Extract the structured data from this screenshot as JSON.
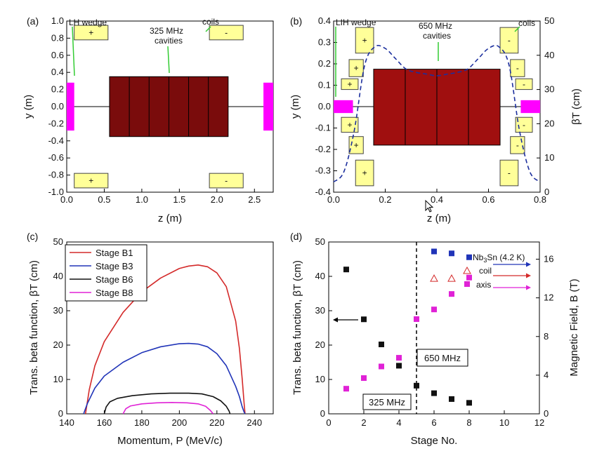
{
  "chart_data": [
    {
      "panel": "(a)",
      "type": "diagram",
      "xlabel": "z (m)",
      "ylabel": "y (m)",
      "xlim": [
        0,
        2.75
      ],
      "ylim": [
        -1.0,
        1.0
      ],
      "xticks": [
        "0.0",
        "0.5",
        "1.0",
        "1.5",
        "2.0",
        "2.5"
      ],
      "yticks": [
        "-1.0",
        "-0.8",
        "-0.6",
        "-0.4",
        "-0.2",
        "0.0",
        "0.2",
        "0.4",
        "0.6",
        "0.8",
        "1.0"
      ],
      "labels": {
        "wedge": "LH wedge",
        "cavities_line1": "325 MHz",
        "cavities_line2": "cavities",
        "coils": "coils"
      },
      "coils": [
        {
          "z": [
            0.1,
            0.55
          ],
          "y": [
            0.78,
            0.95
          ],
          "sign": "+"
        },
        {
          "z": [
            1.9,
            2.35
          ],
          "y": [
            0.78,
            0.95
          ],
          "sign": "-"
        },
        {
          "z": [
            0.1,
            0.55
          ],
          "y": [
            -0.95,
            -0.78
          ],
          "sign": "+"
        },
        {
          "z": [
            1.9,
            2.35
          ],
          "y": [
            -0.95,
            -0.78
          ],
          "sign": "-"
        }
      ],
      "cavity_block": {
        "z": [
          0.57,
          2.15
        ],
        "y": [
          -0.35,
          0.35
        ],
        "cells": 6
      },
      "wedges": [
        {
          "z": [
            0.0,
            0.1
          ],
          "y": [
            -0.28,
            0.28
          ]
        },
        {
          "z": [
            2.62,
            2.75
          ],
          "y": [
            -0.28,
            0.28
          ]
        }
      ],
      "colors": {
        "coil": "#ffff99",
        "cavity": "#7a0c0c",
        "wedge": "#ff00ff",
        "leader": "#33cc33"
      }
    },
    {
      "panel": "(b)",
      "type": "line",
      "xlabel": "z (m)",
      "ylabel": "y (m)",
      "y2label": "βT (cm)",
      "xlim": [
        0,
        0.8
      ],
      "ylim": [
        -0.4,
        0.4
      ],
      "y2lim": [
        0,
        50
      ],
      "xticks": [
        "0.0",
        "0.2",
        "0.4",
        "0.6",
        "0.8"
      ],
      "yticks": [
        "-0.4",
        "-0.3",
        "-0.2",
        "-0.1",
        "0.0",
        "0.1",
        "0.2",
        "0.3",
        "0.4"
      ],
      "y2ticks": [
        "0",
        "10",
        "20",
        "30",
        "40",
        "50"
      ],
      "labels": {
        "wedge": "LIH wedge",
        "cavities_line1": "650 MHz",
        "cavities_line2": "cavities",
        "coils": "coils"
      },
      "coils": [
        {
          "z": [
            0.085,
            0.155
          ],
          "y": [
            0.25,
            0.37
          ],
          "sign": "+"
        },
        {
          "z": [
            0.06,
            0.115
          ],
          "y": [
            0.14,
            0.22
          ],
          "sign": "+"
        },
        {
          "z": [
            0.03,
            0.095
          ],
          "y": [
            0.08,
            0.13
          ],
          "sign": "+"
        },
        {
          "z": [
            0.03,
            0.095
          ],
          "y": [
            -0.12,
            -0.05
          ],
          "sign": "+"
        },
        {
          "z": [
            0.06,
            0.115
          ],
          "y": [
            -0.22,
            -0.14
          ],
          "sign": "+"
        },
        {
          "z": [
            0.085,
            0.155
          ],
          "y": [
            -0.37,
            -0.25
          ],
          "sign": "+"
        },
        {
          "z": [
            0.645,
            0.715
          ],
          "y": [
            0.25,
            0.37
          ],
          "sign": "-"
        },
        {
          "z": [
            0.685,
            0.74
          ],
          "y": [
            0.14,
            0.22
          ],
          "sign": "-"
        },
        {
          "z": [
            0.705,
            0.77
          ],
          "y": [
            0.08,
            0.13
          ],
          "sign": "-"
        },
        {
          "z": [
            0.705,
            0.77
          ],
          "y": [
            -0.12,
            -0.05
          ],
          "sign": "-"
        },
        {
          "z": [
            0.685,
            0.74
          ],
          "y": [
            -0.22,
            -0.14
          ],
          "sign": "-"
        },
        {
          "z": [
            0.645,
            0.715
          ],
          "y": [
            -0.37,
            -0.25
          ],
          "sign": "-"
        }
      ],
      "cavity_block": {
        "z": [
          0.155,
          0.645
        ],
        "y": [
          -0.18,
          0.175
        ],
        "cells": 4
      },
      "wedges": [
        {
          "z": [
            0.0,
            0.075
          ],
          "y": [
            -0.03,
            0.03
          ]
        },
        {
          "z": [
            0.725,
            0.8
          ],
          "y": [
            -0.03,
            0.03
          ]
        }
      ],
      "beta_curve": {
        "z": [
          0.0,
          0.04,
          0.08,
          0.12,
          0.16,
          0.2,
          0.24,
          0.28,
          0.32,
          0.36,
          0.4,
          0.44,
          0.48,
          0.52,
          0.56,
          0.6,
          0.64,
          0.68,
          0.72,
          0.76,
          0.8
        ],
        "beta_cm": [
          3,
          6,
          18,
          37,
          42.5,
          42,
          39,
          36,
          35,
          34.5,
          34,
          34.5,
          35,
          36,
          39,
          42,
          42.5,
          37,
          18,
          6,
          3
        ]
      },
      "colors": {
        "coil": "#ffff99",
        "cavity": "#a00f0f",
        "wedge": "#ff00ff",
        "beta": "#1c2f9e",
        "leader": "#33cc33"
      }
    },
    {
      "panel": "(c)",
      "type": "line",
      "xlabel": "Momentum, P (MeV/c)",
      "ylabel": "Trans. beta function, βT (cm)",
      "xlim": [
        140,
        250
      ],
      "ylim": [
        0,
        50
      ],
      "xticks": [
        "140",
        "160",
        "180",
        "200",
        "220",
        "240"
      ],
      "yticks": [
        "0",
        "10",
        "20",
        "30",
        "40",
        "50"
      ],
      "legend_position": "top-left",
      "series": [
        {
          "name": "Stage B1",
          "color": "#d42a2a",
          "x": [
            150,
            152,
            155,
            160,
            170,
            180,
            190,
            200,
            205,
            210,
            215,
            220,
            225,
            230,
            232,
            233.5,
            234.5,
            235
          ],
          "y": [
            0,
            7,
            14,
            21,
            29.5,
            35.5,
            39.5,
            42.3,
            43,
            43.3,
            42.8,
            41,
            37,
            27,
            19,
            10,
            3,
            0
          ]
        },
        {
          "name": "Stage B3",
          "color": "#2034b8",
          "x": [
            149,
            151,
            155,
            160,
            170,
            180,
            190,
            200,
            205,
            210,
            215,
            220,
            225,
            230,
            232,
            233.5,
            234.5,
            235
          ],
          "y": [
            0,
            3,
            7.5,
            11,
            15,
            17.8,
            19.5,
            20.4,
            20.5,
            20.3,
            19.5,
            17.5,
            14,
            8,
            5,
            2,
            0.5,
            0
          ]
        },
        {
          "name": "Stage B6",
          "color": "#111111",
          "x": [
            160,
            161,
            163,
            167,
            175,
            185,
            195,
            205,
            212,
            218,
            222,
            225,
            226.5,
            227
          ],
          "y": [
            0,
            2,
            3.5,
            4.5,
            5.3,
            5.8,
            6,
            6,
            5.8,
            5,
            3.8,
            2.2,
            0.8,
            0
          ]
        },
        {
          "name": "Stage B8",
          "color": "#e022d6",
          "x": [
            170,
            171.5,
            174,
            180,
            188,
            196,
            204,
            210,
            214,
            216.5,
            218
          ],
          "y": [
            0,
            1.5,
            2.3,
            2.9,
            3.2,
            3.3,
            3.2,
            2.9,
            2.2,
            1,
            0
          ]
        }
      ]
    },
    {
      "panel": "(d)",
      "type": "scatter",
      "xlabel": "Stage No.",
      "ylabel": "Trans. beta function, βT (cm)",
      "y2label": "Magnetic Field, B (T)",
      "xlim": [
        0,
        12
      ],
      "ylim": [
        0,
        50
      ],
      "y2lim": [
        0,
        17.78
      ],
      "xticks": [
        "0",
        "2",
        "4",
        "6",
        "8",
        "10",
        "12"
      ],
      "yticks": [
        "0",
        "10",
        "20",
        "30",
        "40",
        "50"
      ],
      "y2ticks": [
        "0",
        "4",
        "8",
        "12",
        "16"
      ],
      "divider_stage": 5,
      "region_labels": [
        "325 MHz",
        "650 MHz"
      ],
      "series": [
        {
          "name": "βT",
          "axis": "left",
          "marker": "square",
          "color": "#111111",
          "x": [
            1,
            2,
            3,
            4,
            5,
            6,
            7,
            8
          ],
          "y": [
            42,
            27.5,
            20.2,
            14,
            8.2,
            6,
            4.3,
            3.2
          ]
        },
        {
          "name": "Nb3Sn (4.2 K)",
          "axis": "right",
          "marker": "square",
          "color": "#2034b8",
          "x": [
            6,
            7,
            8
          ],
          "y": [
            16.8,
            16.6,
            16.2
          ]
        },
        {
          "name": "coil",
          "axis": "right",
          "marker": "triangle-open",
          "color": "#d42a2a",
          "x": [
            6,
            7
          ],
          "y": [
            14.0,
            14.0
          ]
        },
        {
          "name": "axis",
          "axis": "right",
          "marker": "square",
          "color": "#e022d6",
          "x": [
            1,
            2,
            3,
            4,
            5,
            6,
            7,
            8
          ],
          "y": [
            2.6,
            3.7,
            4.9,
            5.8,
            9.8,
            10.8,
            12.4,
            14.1
          ]
        }
      ],
      "legend_labels": {
        "nb3sn_main": "Nb",
        "nb3sn_sub": "3",
        "nb3sn_rest": "Sn (4.2 K)",
        "coil": "coil",
        "axis": "axis"
      }
    }
  ]
}
